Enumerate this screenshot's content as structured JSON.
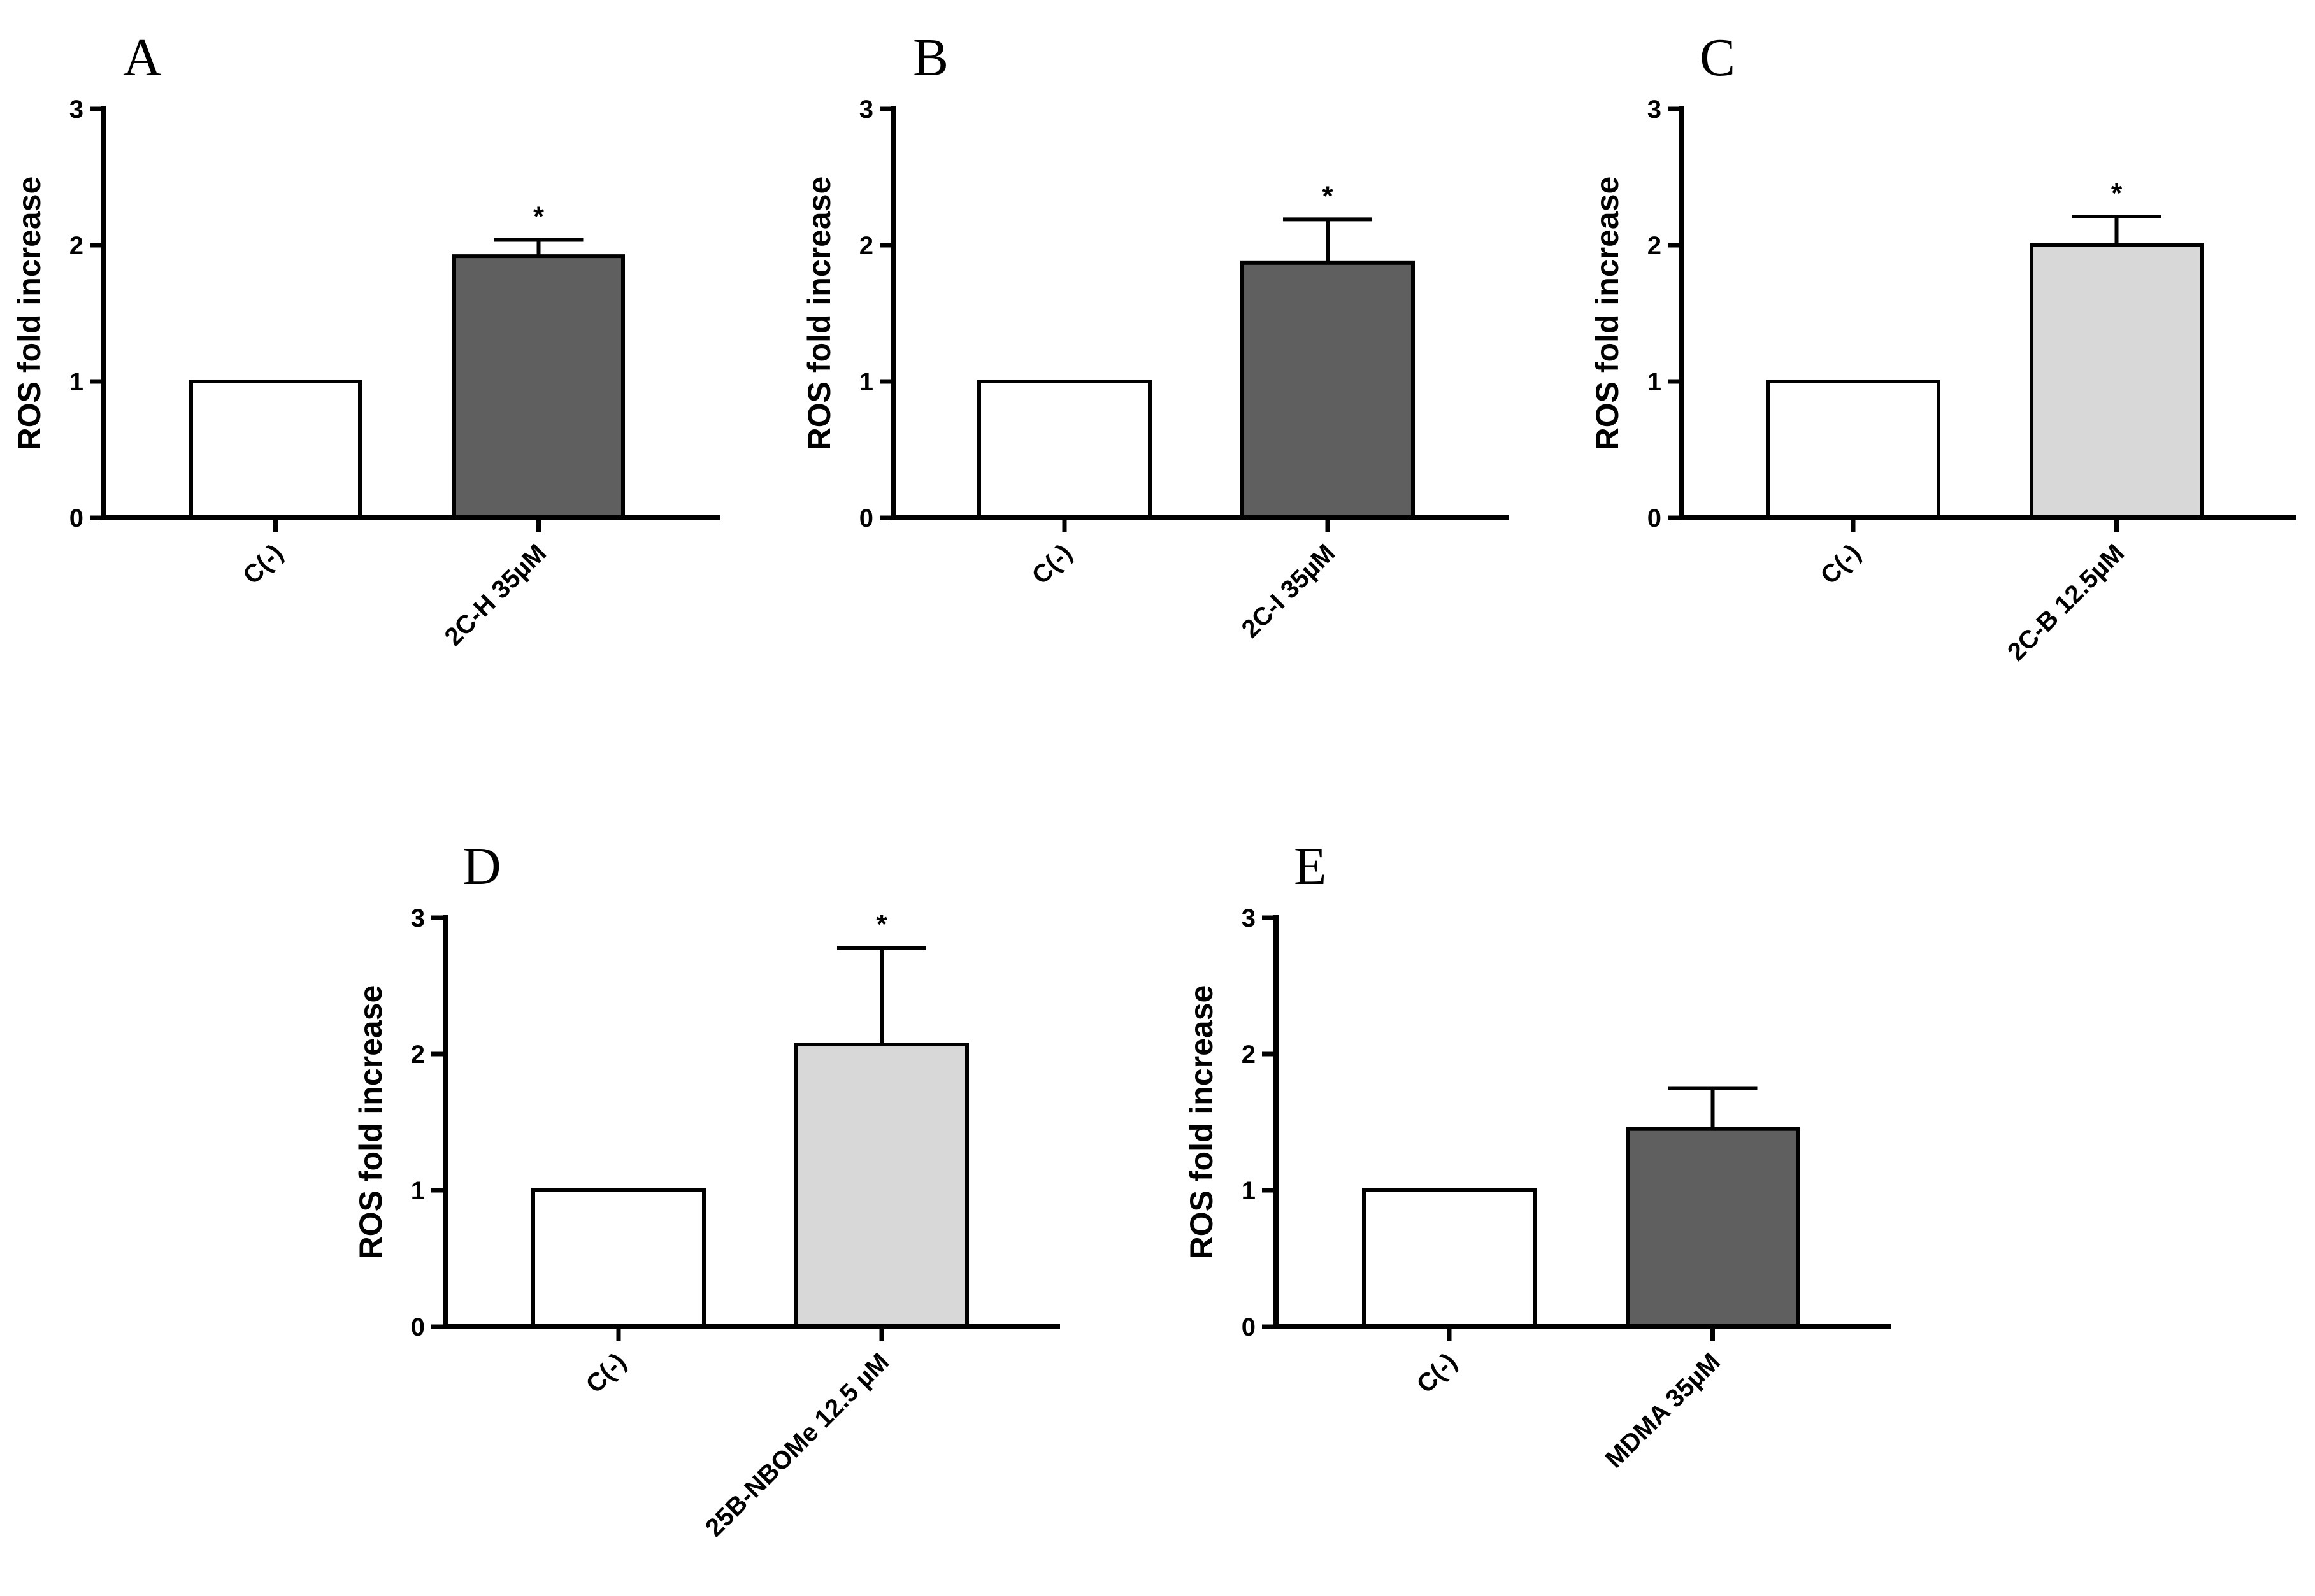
{
  "colors": {
    "control_fill": "#ffffff",
    "dark_fill": "#5f5f5f",
    "light_fill": "#d8d8d8",
    "stroke": "#000000"
  },
  "chart_data": [
    {
      "panel": "A",
      "type": "bar",
      "ylabel": "ROS fold increase",
      "ylim": [
        0,
        3
      ],
      "yticks": [
        "0",
        "1",
        "2",
        "3"
      ],
      "categories": [
        "C(-)",
        "2C-H 35µM"
      ],
      "values": [
        1.0,
        1.92
      ],
      "errors": [
        0,
        0.12
      ],
      "significance": [
        "",
        "*"
      ],
      "fills": [
        "control",
        "dark"
      ]
    },
    {
      "panel": "B",
      "type": "bar",
      "ylabel": "ROS fold increase",
      "ylim": [
        0,
        3
      ],
      "yticks": [
        "0",
        "1",
        "2",
        "3"
      ],
      "categories": [
        "C(-)",
        "2C-I 35µM"
      ],
      "values": [
        1.0,
        1.87
      ],
      "errors": [
        0,
        0.32
      ],
      "significance": [
        "",
        "*"
      ],
      "fills": [
        "control",
        "dark"
      ]
    },
    {
      "panel": "C",
      "type": "bar",
      "ylabel": "ROS fold increase",
      "ylim": [
        0,
        3
      ],
      "yticks": [
        "0",
        "1",
        "2",
        "3"
      ],
      "categories": [
        "C(-)",
        "2C-B 12.5µM"
      ],
      "values": [
        1.0,
        2.0
      ],
      "errors": [
        0,
        0.21
      ],
      "significance": [
        "",
        "*"
      ],
      "fills": [
        "control",
        "light"
      ]
    },
    {
      "panel": "D",
      "type": "bar",
      "ylabel": "ROS fold increase",
      "ylim": [
        0,
        3
      ],
      "yticks": [
        "0",
        "1",
        "2",
        "3"
      ],
      "categories": [
        "C(-)",
        "25B-NBOMe 12.5 µM"
      ],
      "values": [
        1.0,
        2.07
      ],
      "errors": [
        0,
        0.71
      ],
      "significance": [
        "",
        "*"
      ],
      "fills": [
        "control",
        "light"
      ]
    },
    {
      "panel": "E",
      "type": "bar",
      "ylabel": "ROS fold increase",
      "ylim": [
        0,
        3
      ],
      "yticks": [
        "0",
        "1",
        "2",
        "3"
      ],
      "categories": [
        "C(-)",
        "MDMA 35µM"
      ],
      "values": [
        1.0,
        1.45
      ],
      "errors": [
        0,
        0.3
      ],
      "significance": [
        "",
        ""
      ],
      "fills": [
        "control",
        "dark"
      ]
    }
  ]
}
